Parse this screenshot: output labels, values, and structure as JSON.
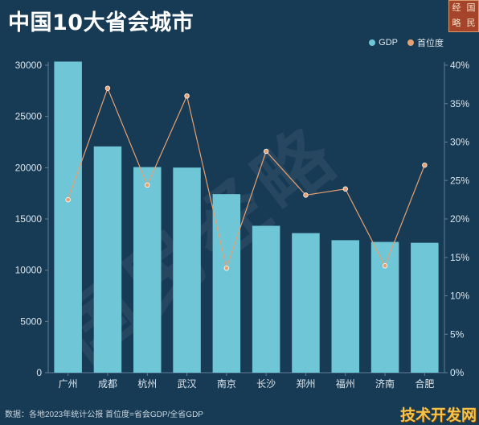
{
  "header": {
    "title": "中国10大省会城市",
    "logo_chars": [
      "经",
      "国",
      "略",
      "民"
    ]
  },
  "legend": {
    "gdp_label": "GDP",
    "share_label": "首位度",
    "gdp_color": "#6ec6d6",
    "share_color": "#e7a070"
  },
  "chart_data": {
    "type": "bar",
    "title": "中国10大省会城市",
    "categories": [
      "广州",
      "成都",
      "杭州",
      "武汉",
      "南京",
      "长沙",
      "郑州",
      "福州",
      "济南",
      "合肥"
    ],
    "series": [
      {
        "name": "GDP",
        "type": "bar",
        "axis": "left",
        "values": [
          30355,
          22075,
          20059,
          20011,
          17421,
          14331,
          13617,
          12928,
          12757,
          12674
        ]
      },
      {
        "name": "首位度",
        "type": "line",
        "axis": "right",
        "values": [
          22.5,
          37.0,
          24.4,
          36.0,
          13.6,
          28.8,
          23.1,
          23.9,
          13.9,
          27.0
        ]
      }
    ],
    "y_left": {
      "ylim": [
        0,
        30000
      ],
      "ticks": [
        0,
        5000,
        10000,
        15000,
        20000,
        25000,
        30000
      ],
      "tick_labels": [
        "0",
        "5000",
        "10000",
        "15000",
        "20000",
        "25000",
        "30000"
      ]
    },
    "y_right": {
      "ylim": [
        0,
        40
      ],
      "ticks": [
        0,
        5,
        10,
        15,
        20,
        25,
        30,
        35,
        40
      ],
      "tick_labels": [
        "0%",
        "5%",
        "10%",
        "15%",
        "20%",
        "25%",
        "30%",
        "35%",
        "40%"
      ]
    },
    "grid": false,
    "legend_position": "top-right"
  },
  "footer": {
    "source": "数据：各地2023年统计公报 首位度=省会GDP/全省GDP"
  },
  "watermarks": {
    "center": "国民经略",
    "corner": "技术开发网"
  }
}
